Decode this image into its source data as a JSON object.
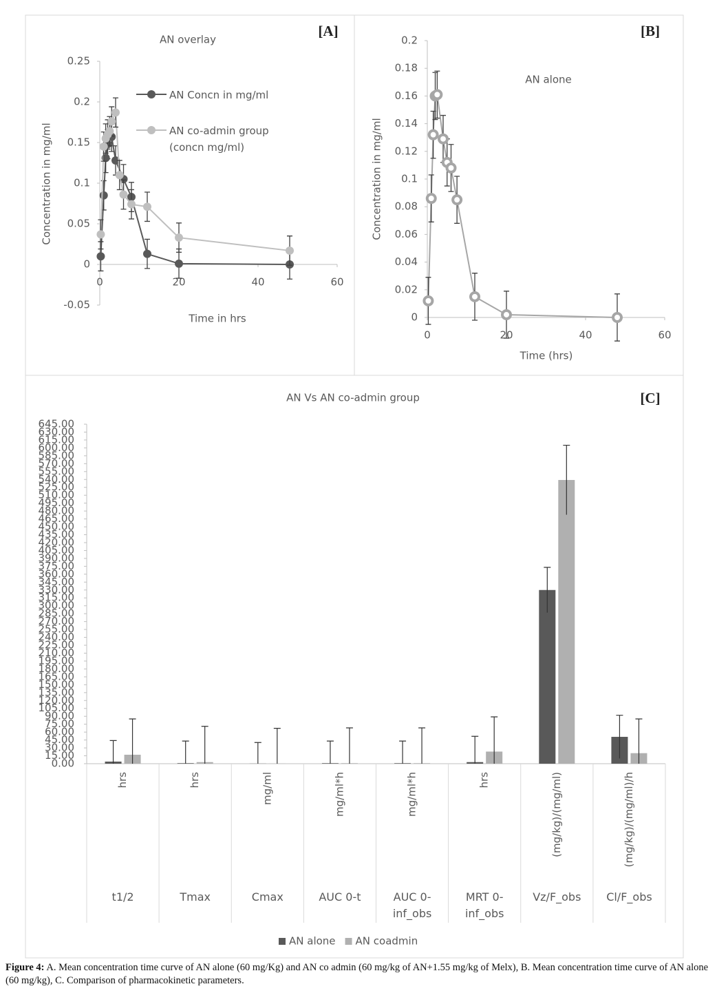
{
  "chart_data": [
    {
      "type": "line",
      "title": "AN overlay",
      "panel_label": "[A]",
      "x_label": "Time in hrs",
      "y_label": "Concentration in mg/ml",
      "xlim": [
        0,
        60
      ],
      "xticks": [
        0,
        20,
        40,
        60
      ],
      "ylim": [
        -0.05,
        0.25
      ],
      "yticks": [
        -0.05,
        0,
        0.05,
        0.1,
        0.15,
        0.2,
        0.25
      ],
      "legend": "upper-right",
      "series": [
        {
          "name": "AN Concn in mg/ml",
          "color": "#595959",
          "x": [
            0.25,
            1,
            1.5,
            2,
            3,
            4,
            6,
            8,
            12,
            20,
            48
          ],
          "values": [
            0.01,
            0.085,
            0.131,
            0.148,
            0.157,
            0.128,
            0.105,
            0.083,
            0.013,
            0.001,
            0
          ],
          "errors": [
            0.018,
            0.018,
            0.018,
            0.018,
            0.018,
            0.018,
            0.018,
            0.018,
            0.018,
            0.018,
            0.018
          ]
        },
        {
          "name": "AN co-admin group (concn mg/ml)",
          "color": "#bfbfbf",
          "x": [
            0.25,
            1,
            1.5,
            2,
            2.5,
            3,
            4,
            5,
            6,
            8,
            12,
            20,
            48
          ],
          "values": [
            0.037,
            0.145,
            0.155,
            0.16,
            0.164,
            0.176,
            0.187,
            0.11,
            0.086,
            0.074,
            0.071,
            0.033,
            0.017
          ],
          "errors": [
            0.018,
            0.018,
            0.018,
            0.018,
            0.018,
            0.018,
            0.018,
            0.018,
            0.018,
            0.018,
            0.018,
            0.018,
            0.018
          ]
        }
      ]
    },
    {
      "type": "line",
      "title": "AN alone",
      "panel_label": "[B]",
      "x_label": "Time (hrs)",
      "y_label": "Concentration in mg/ml",
      "xlim": [
        0,
        60
      ],
      "xticks": [
        0,
        20,
        40,
        60
      ],
      "ylim": [
        0,
        0.2
      ],
      "yticks": [
        0,
        0.02,
        0.04,
        0.06,
        0.08,
        0.1,
        0.12,
        0.14,
        0.16,
        0.18,
        0.2
      ],
      "marker": "ring",
      "series": [
        {
          "color": "#a6a6a6",
          "x": [
            0.25,
            1,
            1.5,
            2,
            2.5,
            4,
            5,
            6,
            7.5,
            12,
            20,
            48
          ],
          "values": [
            0.012,
            0.086,
            0.132,
            0.16,
            0.161,
            0.129,
            0.112,
            0.108,
            0.085,
            0.015,
            0.002,
            0
          ],
          "errors": [
            0.017,
            0.017,
            0.017,
            0.017,
            0.017,
            0.017,
            0.017,
            0.017,
            0.017,
            0.017,
            0.017,
            0.017
          ]
        }
      ]
    },
    {
      "type": "bar",
      "title": "AN Vs AN co-admin group",
      "panel_label": "[C]",
      "categories": [
        "t1/2",
        "Tmax",
        "Cmax",
        "AUC 0-t",
        "AUC 0-inf_obs",
        "MRT 0-inf_obs",
        "Vz/F_obs",
        "Cl/F_obs"
      ],
      "units": [
        "hrs",
        "hrs",
        "mg/ml",
        "mg/ml*h",
        "mg/ml*h",
        "hrs",
        "(mg/kg)/(mg/ml)",
        "(mg/kg)/(mg/ml)/h"
      ],
      "ylim": [
        0,
        645
      ],
      "yticks": [
        {
          "value": 0,
          "label": "0.00"
        },
        {
          "value": 15,
          "label": "15.00"
        },
        {
          "value": 30,
          "label": "30.00"
        },
        {
          "value": 45,
          "label": "45.00"
        },
        {
          "value": 60,
          "label": "60.00"
        },
        {
          "value": 75,
          "label": "75.00"
        },
        {
          "value": 90,
          "label": "90.00"
        },
        {
          "value": 105,
          "label": "105.00"
        },
        {
          "value": 120,
          "label": "120.00"
        },
        {
          "value": 135,
          "label": "135.00"
        },
        {
          "value": 150,
          "label": "150.00"
        },
        {
          "value": 165,
          "label": "165.00"
        },
        {
          "value": 180,
          "label": "180.00"
        },
        {
          "value": 195,
          "label": "195.00"
        },
        {
          "value": 210,
          "label": "210.00"
        },
        {
          "value": 225,
          "label": "225.00"
        },
        {
          "value": 240,
          "label": "240.00"
        },
        {
          "value": 255,
          "label": "255.00"
        },
        {
          "value": 270,
          "label": "270.00"
        },
        {
          "value": 285,
          "label": "285.00"
        },
        {
          "value": 300,
          "label": "300.00"
        },
        {
          "value": 315,
          "label": "315.00"
        },
        {
          "value": 330,
          "label": "330.00"
        },
        {
          "value": 345,
          "label": "345.00"
        },
        {
          "value": 360,
          "label": "360.00"
        },
        {
          "value": 375,
          "label": "375.00"
        },
        {
          "value": 390,
          "label": "390.00"
        },
        {
          "value": 405,
          "label": "405.00"
        },
        {
          "value": 420,
          "label": "420.00"
        },
        {
          "value": 435,
          "label": "435.00"
        },
        {
          "value": 450,
          "label": "450.00"
        },
        {
          "value": 465,
          "label": "465.00"
        },
        {
          "value": 480,
          "label": "480.00"
        },
        {
          "value": 495,
          "label": "495.00"
        },
        {
          "value": 510,
          "label": "510.00"
        },
        {
          "value": 525,
          "label": "525.00"
        },
        {
          "value": 540,
          "label": "540.00"
        },
        {
          "value": 555,
          "label": "555.00"
        },
        {
          "value": 570,
          "label": "570.00"
        },
        {
          "value": 585,
          "label": "585.00"
        },
        {
          "value": 600,
          "label": "600.00"
        },
        {
          "value": 615,
          "label": "615.00"
        },
        {
          "value": 630,
          "label": "630.00"
        },
        {
          "value": 645,
          "label": "645.00"
        }
      ],
      "legend": "bottom",
      "series": [
        {
          "name": "AN alone",
          "color": "#595959",
          "values": [
            4,
            1,
            0.2,
            1,
            1,
            3,
            330,
            51
          ],
          "errors": [
            40,
            42,
            40,
            42,
            42,
            49,
            43,
            41
          ]
        },
        {
          "name": "AN coadmin",
          "color": "#b0b0b0",
          "values": [
            17,
            3,
            0.2,
            1,
            1,
            23,
            539,
            20
          ],
          "errors": [
            68,
            68,
            67,
            67,
            67,
            66,
            66,
            65
          ]
        }
      ]
    }
  ],
  "caption": {
    "label": "Figure 4:",
    "text": "A. Mean concentration time curve of AN alone (60 mg/Kg) and AN co admin (60 mg/kg of AN+1.55 mg/kg of Melx), B. Mean concentration time curve of AN alone (60 mg/kg), C. Comparison of pharmacokinetic parameters."
  }
}
